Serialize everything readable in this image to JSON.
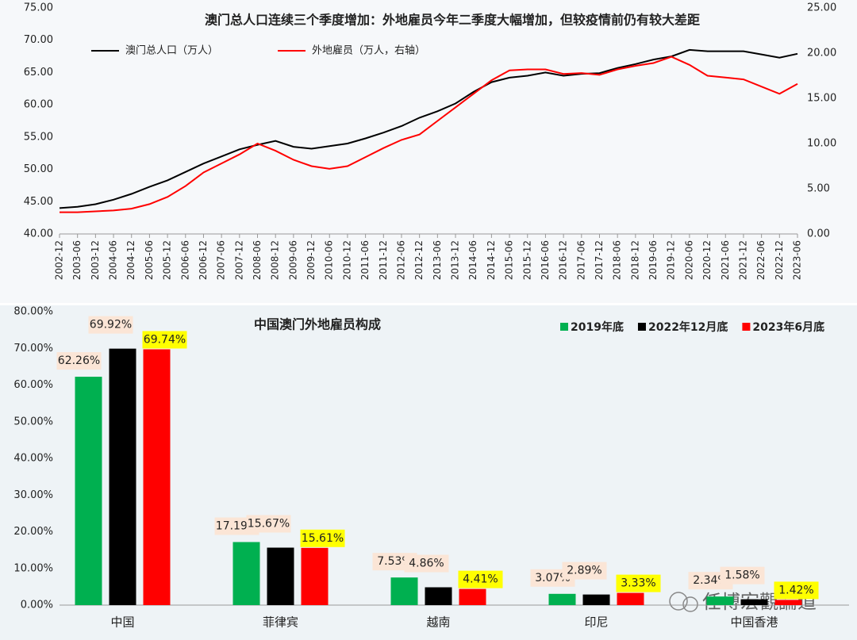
{
  "chart_data": [
    {
      "type": "line",
      "title": "澳门总人口连续三个季度增加：外地雇员今年二季度大幅增加，但较疫情前仍有较大差距",
      "categories": [
        "2002-12",
        "2003-06",
        "2003-12",
        "2004-06",
        "2004-12",
        "2005-06",
        "2005-12",
        "2006-06",
        "2006-12",
        "2007-06",
        "2007-12",
        "2008-06",
        "2008-12",
        "2009-06",
        "2009-12",
        "2010-06",
        "2010-12",
        "2011-06",
        "2011-12",
        "2012-06",
        "2012-12",
        "2013-06",
        "2013-12",
        "2014-06",
        "2014-12",
        "2015-06",
        "2015-12",
        "2016-06",
        "2016-12",
        "2017-06",
        "2017-12",
        "2018-06",
        "2018-12",
        "2019-06",
        "2019-12",
        "2020-06",
        "2020-12",
        "2021-06",
        "2021-12",
        "2022-06",
        "2022-12",
        "2023-06"
      ],
      "series": [
        {
          "name": "澳门总人口（万人）",
          "color": "#000000",
          "values": [
            44.0,
            44.2,
            44.6,
            45.3,
            46.2,
            47.3,
            48.3,
            49.6,
            50.9,
            52.0,
            53.1,
            53.8,
            54.4,
            53.5,
            53.2,
            53.6,
            54.0,
            54.8,
            55.7,
            56.7,
            58.0,
            59.0,
            60.2,
            62.0,
            63.5,
            64.2,
            64.5,
            65.0,
            64.5,
            64.8,
            64.9,
            65.7,
            66.3,
            67.0,
            67.5,
            68.5,
            68.3,
            68.3,
            68.3,
            67.8,
            67.3,
            67.9
          ]
        },
        {
          "name": "外地雇员（万人，右轴）",
          "color": "#ff0000",
          "axis": "y2",
          "values": [
            2.4,
            2.4,
            2.5,
            2.6,
            2.8,
            3.3,
            4.1,
            5.3,
            6.8,
            7.8,
            8.8,
            10.0,
            9.2,
            8.2,
            7.5,
            7.2,
            7.5,
            8.5,
            9.5,
            10.4,
            11.0,
            12.5,
            14.0,
            15.5,
            17.0,
            18.1,
            18.2,
            18.2,
            17.7,
            17.8,
            17.6,
            18.2,
            18.6,
            18.9,
            19.6,
            18.7,
            17.5,
            17.3,
            17.1,
            16.3,
            15.5,
            16.6
          ]
        }
      ],
      "ylim": [
        40,
        75
      ],
      "yticks": [
        {
          "value": 40,
          "label": "40.00"
        },
        {
          "value": 45,
          "label": "45.00"
        },
        {
          "value": 50,
          "label": "50.00"
        },
        {
          "value": 55,
          "label": "55.00"
        },
        {
          "value": 60,
          "label": "60.00"
        },
        {
          "value": 65,
          "label": "65.00"
        },
        {
          "value": 70,
          "label": "70.00"
        },
        {
          "value": 75,
          "label": "75.00"
        }
      ],
      "y2lim": [
        0,
        25
      ],
      "y2ticks": [
        {
          "value": 0,
          "label": "0.00"
        },
        {
          "value": 5,
          "label": "5.00"
        },
        {
          "value": 10,
          "label": "10.00"
        },
        {
          "value": 15,
          "label": "15.00"
        },
        {
          "value": 20,
          "label": "20.00"
        },
        {
          "value": 25,
          "label": "25.00"
        }
      ],
      "grid": false,
      "legend": "top-left"
    },
    {
      "type": "bar",
      "title": "中国澳门外地雇员构成",
      "categories": [
        "中国",
        "菲律宾",
        "越南",
        "印尼",
        "中国香港"
      ],
      "series": [
        {
          "name": "2019年底",
          "color": "#00b050",
          "values": [
            62.26,
            17.19,
            7.53,
            3.07,
            2.34
          ],
          "value_labels": [
            "62.26%",
            "17.19%",
            "7.53%",
            "3.07%",
            "2.34%"
          ]
        },
        {
          "name": "2022年12月底",
          "color": "#000000",
          "values": [
            69.92,
            15.67,
            4.86,
            2.89,
            1.58
          ],
          "value_labels": [
            "69.92%",
            "15.67%",
            "4.86%",
            "2.89%",
            "1.58%"
          ]
        },
        {
          "name": "2023年6月底",
          "color": "#ff0000",
          "values": [
            69.74,
            15.61,
            4.41,
            3.33,
            1.42
          ],
          "value_labels": [
            "69.74%",
            "15.61%",
            "4.41%",
            "3.33%",
            "1.42%"
          ]
        }
      ],
      "ylim": [
        0,
        80
      ],
      "yticks": [
        {
          "value": 0,
          "label": "0.00%"
        },
        {
          "value": 10,
          "label": "10.00%"
        },
        {
          "value": 20,
          "label": "20.00%"
        },
        {
          "value": 30,
          "label": "30.00%"
        },
        {
          "value": 40,
          "label": "40.00%"
        },
        {
          "value": 50,
          "label": "50.00%"
        },
        {
          "value": 60,
          "label": "60.00%"
        },
        {
          "value": 70,
          "label": "70.00%"
        },
        {
          "value": 80,
          "label": "80.00%"
        }
      ],
      "grid": false,
      "legend": "top-right"
    }
  ],
  "watermark": "任博宏觀論道"
}
